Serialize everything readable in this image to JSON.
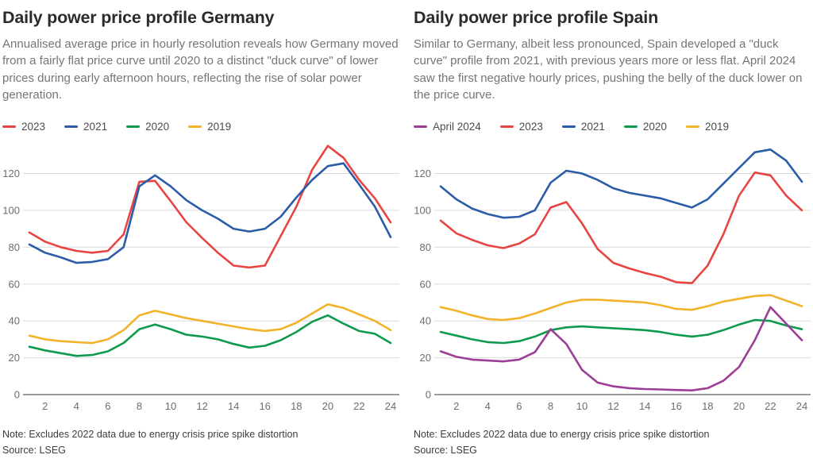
{
  "chart_data": [
    {
      "type": "line",
      "title": "Daily power price profile Germany",
      "subtitle": "Annualised average price in hourly resolution reveals how Germany moved from a fairly flat price curve until 2020 to a distinct \"duck curve\" of lower prices during early afternoon hours, reflecting the rise of solar power generation.",
      "xlabel": "",
      "ylabel": "",
      "x": [
        1,
        2,
        3,
        4,
        5,
        6,
        7,
        8,
        9,
        10,
        11,
        12,
        13,
        14,
        15,
        16,
        17,
        18,
        19,
        20,
        21,
        22,
        23,
        24
      ],
      "xticks": [
        2,
        4,
        6,
        8,
        10,
        12,
        14,
        16,
        18,
        20,
        22,
        24
      ],
      "yticks": [
        0,
        20,
        40,
        60,
        80,
        100,
        120
      ],
      "ylim": [
        0,
        136
      ],
      "grid": true,
      "legend_position": "top-left",
      "series": [
        {
          "name": "2023",
          "color": "#e84542",
          "values": [
            88,
            83,
            80,
            78,
            77,
            78,
            87,
            115.5,
            116,
            105,
            93.5,
            85,
            77,
            70,
            69,
            70,
            86,
            102,
            122,
            135,
            128.5,
            116.5,
            106.5,
            93.5
          ]
        },
        {
          "name": "2021",
          "color": "#2a5ca8",
          "values": [
            81.5,
            77,
            74.5,
            71.5,
            72,
            73.5,
            80,
            113,
            119,
            113,
            105.5,
            100,
            95.5,
            90,
            88.5,
            90,
            96.5,
            107,
            116.5,
            124,
            125.5,
            114,
            102,
            85.5
          ]
        },
        {
          "name": "2020",
          "color": "#0d9a4e",
          "values": [
            26,
            24,
            22.5,
            21,
            21.5,
            23.5,
            28,
            35.5,
            38,
            35.5,
            32.5,
            31.5,
            30,
            27.5,
            25.5,
            26.5,
            29.5,
            34,
            39.5,
            43,
            38.5,
            34.5,
            33,
            28
          ]
        },
        {
          "name": "2019",
          "color": "#f2b32b",
          "values": [
            32,
            30,
            29,
            28.5,
            28,
            30,
            35,
            43,
            45.5,
            43.5,
            41.5,
            40,
            38.5,
            37,
            35.5,
            34.5,
            35.5,
            39,
            44,
            49,
            47,
            43.5,
            40,
            35
          ]
        }
      ],
      "draw_order": [
        0,
        1,
        2,
        3
      ],
      "note": "Note: Excludes 2022 data due to energy crisis price spike distortion",
      "source": "Source: LSEG"
    },
    {
      "type": "line",
      "title": "Daily power price profile Spain",
      "subtitle": "Similar to Germany, albeit less pronounced, Spain developed a \"duck curve\" profile from 2021, with previous years more or less flat. April 2024 saw the first negative hourly prices, pushing the belly of the duck lower on the price curve.",
      "xlabel": "",
      "ylabel": "",
      "x": [
        1,
        2,
        3,
        4,
        5,
        6,
        7,
        8,
        9,
        10,
        11,
        12,
        13,
        14,
        15,
        16,
        17,
        18,
        19,
        20,
        21,
        22,
        23,
        24
      ],
      "xticks": [
        2,
        4,
        6,
        8,
        10,
        12,
        14,
        16,
        18,
        20,
        22,
        24
      ],
      "yticks": [
        0,
        20,
        40,
        60,
        80,
        100,
        120
      ],
      "ylim": [
        0,
        136
      ],
      "grid": true,
      "legend_position": "top-left",
      "series": [
        {
          "name": "April 2024",
          "color": "#9c3d96",
          "values": [
            23.5,
            20.5,
            19,
            18.5,
            18,
            19,
            23,
            35.5,
            27.5,
            13.5,
            6.5,
            4.5,
            3.5,
            3,
            2.8,
            2.5,
            2.3,
            3.5,
            7.5,
            15,
            29.5,
            47.5,
            38.5,
            29.5
          ]
        },
        {
          "name": "2023",
          "color": "#e84542",
          "values": [
            94.5,
            87.5,
            84,
            81,
            79.5,
            82,
            87,
            101.5,
            104.5,
            93,
            79,
            71.5,
            68.5,
            66,
            64,
            61,
            60.5,
            70,
            87,
            108,
            120.5,
            119,
            108,
            100
          ]
        },
        {
          "name": "2021",
          "color": "#2a5ca8",
          "values": [
            113,
            106,
            101,
            98,
            96,
            96.5,
            100,
            115,
            121.5,
            120,
            116.5,
            112,
            109.5,
            108,
            106.5,
            104,
            101.5,
            106,
            114.5,
            123,
            131.5,
            133,
            127,
            115.5
          ]
        },
        {
          "name": "2020",
          "color": "#0d9a4e",
          "values": [
            34,
            32,
            30,
            28.5,
            28,
            29,
            31.5,
            35,
            36.5,
            37,
            36.5,
            36,
            35.5,
            35,
            34,
            32.5,
            31.5,
            32.5,
            35,
            38,
            40.5,
            40,
            37.5,
            35.5
          ]
        },
        {
          "name": "2019",
          "color": "#f2b32b",
          "values": [
            47.5,
            45.5,
            43,
            41,
            40.5,
            41.5,
            44,
            47,
            50,
            51.5,
            51.5,
            51,
            50.5,
            50,
            48.5,
            46.5,
            46,
            48,
            50.5,
            52,
            53.5,
            54,
            51,
            48
          ]
        }
      ],
      "draw_order": [
        1,
        2,
        3,
        4,
        0
      ],
      "note": "Note: Excludes 2022 data due to energy crisis price spike distortion",
      "source": "Source: LSEG"
    }
  ],
  "colors": {
    "grid": "#dcdcdc",
    "axis": "#7a7a7a",
    "tick_text": "#6d6d6d"
  }
}
